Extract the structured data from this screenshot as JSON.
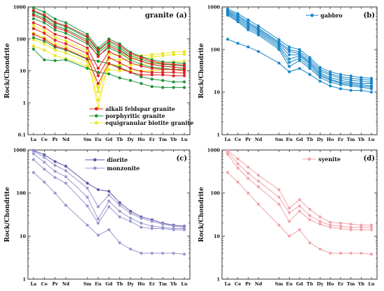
{
  "figure": {
    "background": "#ffffff"
  },
  "chart_data": [
    {
      "type": "line",
      "y_scale": "log",
      "ylim": [
        0.1,
        1000
      ],
      "yticks": [
        "0.1",
        "1",
        "10",
        "100",
        "1000"
      ],
      "ylabel": "Rock/Chondrite",
      "categories": [
        "La",
        "Ce",
        "Pr",
        "Nd",
        "Sm",
        "Eu",
        "Gd",
        "Tb",
        "Dy",
        "Ho",
        "Er",
        "Tm",
        "Yb",
        "Lu"
      ],
      "x_positions": [
        0,
        1,
        2,
        3,
        5,
        6,
        7,
        8,
        9,
        10,
        11,
        12,
        13,
        14
      ],
      "panel_label": "granite (a)",
      "legend_position": "bottom-right",
      "legend": [
        {
          "label": "alkali feldspar granite",
          "color": "#e8221e"
        },
        {
          "label": "porphyritic granite",
          "color": "#1e9a3a"
        },
        {
          "label": "equigranular biotite granite",
          "color": "#f2ee1c"
        }
      ],
      "series": [
        {
          "group": 1,
          "values": [
            780,
            560,
            330,
            260,
            120,
            45,
            88,
            62,
            35,
            26,
            20,
            17,
            16,
            15
          ]
        },
        {
          "group": 1,
          "values": [
            550,
            390,
            230,
            180,
            80,
            28,
            60,
            42,
            26,
            20,
            16,
            14,
            13,
            12
          ]
        },
        {
          "group": 1,
          "values": [
            320,
            230,
            140,
            110,
            52,
            12,
            40,
            28,
            18,
            14,
            12,
            11,
            11,
            10
          ]
        },
        {
          "group": 1,
          "values": [
            210,
            150,
            90,
            70,
            35,
            7,
            26,
            18,
            12,
            9.5,
            9,
            9,
            9,
            8.5
          ]
        },
        {
          "group": 1,
          "values": [
            140,
            100,
            60,
            48,
            24,
            4,
            17,
            12,
            9,
            7.5,
            7.5,
            7.5,
            7,
            7
          ]
        },
        {
          "group": 2,
          "values": [
            950,
            700,
            420,
            320,
            140,
            52,
            100,
            70,
            38,
            28,
            22,
            19,
            18,
            17
          ]
        },
        {
          "group": 2,
          "values": [
            720,
            520,
            310,
            240,
            110,
            42,
            80,
            55,
            30,
            23,
            18,
            16,
            15,
            14
          ]
        },
        {
          "group": 2,
          "values": [
            600,
            440,
            260,
            200,
            92,
            36,
            68,
            48,
            26,
            20,
            16,
            14,
            13,
            12
          ]
        },
        {
          "group": 2,
          "values": [
            430,
            320,
            190,
            150,
            70,
            30,
            52,
            37,
            22,
            16,
            13,
            12,
            11,
            11
          ]
        },
        {
          "group": 2,
          "values": [
            110,
            85,
            55,
            45,
            23,
            20,
            17,
            13,
            9,
            6.5,
            5.5,
            5,
            4.5,
            4.5
          ]
        },
        {
          "group": 2,
          "values": [
            48,
            22,
            21,
            22,
            12,
            9,
            8,
            6,
            5,
            4,
            3.2,
            3,
            3,
            3
          ]
        },
        {
          "group": 3,
          "values": [
            260,
            180,
            110,
            85,
            42,
            2.2,
            34,
            30,
            29,
            30,
            32,
            35,
            38,
            40
          ]
        },
        {
          "group": 3,
          "values": [
            150,
            110,
            70,
            55,
            28,
            0.7,
            24,
            22,
            23,
            25,
            27,
            30,
            32,
            33
          ]
        },
        {
          "group": 3,
          "values": [
            95,
            70,
            45,
            36,
            19,
            1.2,
            16,
            15,
            15,
            16,
            17,
            18,
            19,
            20
          ]
        },
        {
          "group": 3,
          "values": [
            60,
            45,
            30,
            24,
            14,
            3,
            11,
            10,
            10,
            10,
            10,
            11,
            11,
            11
          ]
        }
      ]
    },
    {
      "type": "line",
      "y_scale": "log",
      "ylim": [
        1,
        1000
      ],
      "yticks": [
        "1",
        "10",
        "100",
        "1000"
      ],
      "ylabel": "Rock/Chondrite",
      "categories": [
        "La",
        "Ce",
        "Pr",
        "Nd",
        "Sm",
        "Eu",
        "Gd",
        "Tb",
        "Dy",
        "Ho",
        "Er",
        "Tm",
        "Yb",
        "Lu"
      ],
      "x_positions": [
        0,
        1,
        2,
        3,
        5,
        6,
        7,
        8,
        9,
        10,
        11,
        12,
        13,
        14
      ],
      "panel_label": "(b)",
      "legend_position": "top-right",
      "legend": [
        {
          "label": "gabbro",
          "color": "#1b87c8"
        }
      ],
      "series": [
        {
          "group": 1,
          "values": [
            900,
            700,
            500,
            360,
            170,
            115,
            100,
            65,
            38,
            30,
            26,
            24,
            22,
            21
          ]
        },
        {
          "group": 1,
          "values": [
            850,
            640,
            440,
            320,
            150,
            100,
            88,
            58,
            34,
            27,
            23,
            21,
            20,
            19
          ]
        },
        {
          "group": 1,
          "values": [
            800,
            600,
            410,
            300,
            140,
            90,
            80,
            52,
            31,
            25,
            21,
            19,
            18,
            17
          ]
        },
        {
          "group": 1,
          "values": [
            760,
            560,
            380,
            280,
            130,
            75,
            75,
            48,
            28,
            22,
            19,
            17,
            16,
            16
          ]
        },
        {
          "group": 1,
          "values": [
            720,
            520,
            350,
            260,
            120,
            60,
            70,
            45,
            26,
            20,
            17,
            16,
            15,
            14
          ]
        },
        {
          "group": 1,
          "values": [
            680,
            480,
            320,
            240,
            110,
            50,
            62,
            40,
            24,
            19,
            16,
            15,
            14,
            13
          ]
        },
        {
          "group": 1,
          "values": [
            640,
            450,
            290,
            220,
            100,
            40,
            55,
            36,
            22,
            17,
            15,
            14,
            13,
            12
          ]
        },
        {
          "group": 1,
          "values": [
            175,
            140,
            115,
            90,
            48,
            30,
            36,
            26,
            18,
            14,
            12,
            11,
            11,
            10
          ]
        }
      ]
    },
    {
      "type": "line",
      "y_scale": "log",
      "ylim": [
        1,
        1000
      ],
      "yticks": [
        "1",
        "10",
        "100",
        "1000"
      ],
      "ylabel": "Rock/Chondrite",
      "categories": [
        "La",
        "Ce",
        "Pr",
        "Nd",
        "Sm",
        "Eu",
        "Gd",
        "Tb",
        "Dy",
        "Ho",
        "Er",
        "Tm",
        "Yb",
        "Lu"
      ],
      "x_positions": [
        0,
        1,
        2,
        3,
        5,
        6,
        7,
        8,
        9,
        10,
        11,
        12,
        13,
        14
      ],
      "panel_label": "(c)",
      "legend_position": "top-center",
      "legend": [
        {
          "label": "diorite",
          "color": "#5e5aa8"
        },
        {
          "label": "monzonite",
          "color": "#9b97cf"
        }
      ],
      "series": [
        {
          "group": 1,
          "values": [
            980,
            780,
            540,
            420,
            170,
            120,
            110,
            60,
            38,
            28,
            24,
            20,
            18,
            17
          ]
        },
        {
          "group": 2,
          "values": [
            950,
            680,
            440,
            330,
            130,
            48,
            90,
            52,
            34,
            26,
            22,
            19,
            17,
            16
          ]
        },
        {
          "group": 2,
          "values": [
            820,
            520,
            320,
            240,
            80,
            25,
            65,
            38,
            26,
            20,
            17,
            16,
            15,
            15
          ]
        },
        {
          "group": 2,
          "values": [
            600,
            360,
            230,
            170,
            50,
            20,
            48,
            28,
            22,
            16,
            15,
            15,
            14,
            14
          ]
        },
        {
          "group": 2,
          "values": [
            300,
            180,
            100,
            52,
            18,
            10.5,
            14,
            7,
            5,
            4,
            4,
            4,
            4,
            3.8
          ]
        }
      ]
    },
    {
      "type": "line",
      "y_scale": "log",
      "ylim": [
        1,
        1000
      ],
      "yticks": [
        "1",
        "10",
        "100",
        "1000"
      ],
      "ylabel": "Rock/Chondrite",
      "categories": [
        "La",
        "Ce",
        "Pr",
        "Nd",
        "Sm",
        "Eu",
        "Gd",
        "Tb",
        "Dy",
        "Ho",
        "Er",
        "Tm",
        "Yb",
        "Lu"
      ],
      "x_positions": [
        0,
        1,
        2,
        3,
        5,
        6,
        7,
        8,
        9,
        10,
        11,
        12,
        13,
        14
      ],
      "panel_label": "(d)",
      "legend_position": "top-right",
      "legend": [
        {
          "label": "syenite",
          "color": "#f2a3a8"
        }
      ],
      "series": [
        {
          "group": 1,
          "values": [
            980,
            620,
            400,
            260,
            120,
            45,
            70,
            42,
            28,
            21,
            20,
            19,
            18,
            18
          ]
        },
        {
          "group": 1,
          "values": [
            900,
            480,
            290,
            190,
            80,
            35,
            50,
            30,
            22,
            18,
            17,
            16,
            16,
            16
          ]
        },
        {
          "group": 1,
          "values": [
            800,
            380,
            220,
            140,
            55,
            22,
            38,
            24,
            19,
            16,
            15,
            14,
            14,
            14
          ]
        },
        {
          "group": 1,
          "values": [
            300,
            180,
            100,
            55,
            18,
            10,
            14,
            7,
            5,
            4,
            4,
            4,
            4,
            3.8
          ]
        }
      ]
    }
  ]
}
